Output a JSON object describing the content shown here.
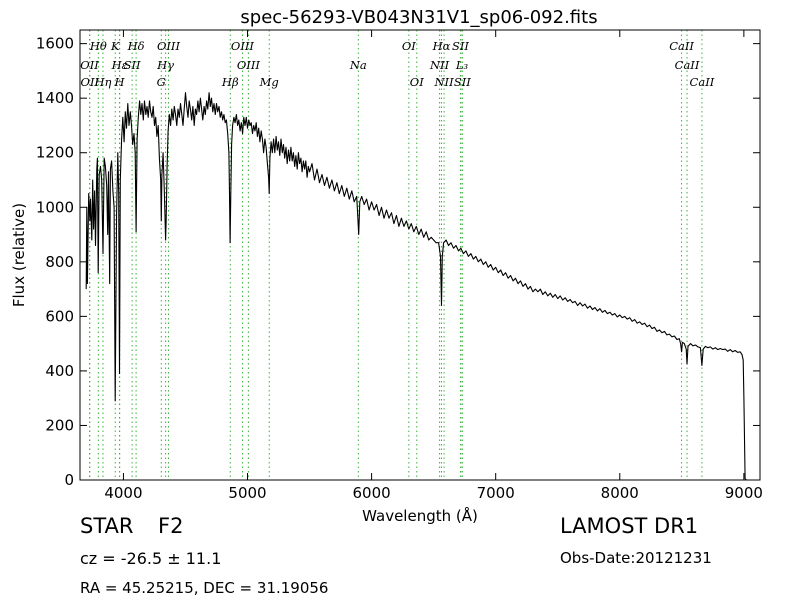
{
  "chart_data": {
    "type": "line",
    "title": "spec-56293-VB043N31V1_sp06-092.fits",
    "xlabel": "Wavelength (Å)",
    "ylabel": "Flux (relative)",
    "xlim": [
      3650,
      9130
    ],
    "ylim": [
      0,
      1650
    ],
    "xticks": [
      4000,
      5000,
      6000,
      7000,
      8000,
      9000
    ],
    "yticks": [
      0,
      200,
      400,
      600,
      800,
      1000,
      1200,
      1400,
      1600
    ],
    "grid": false,
    "line_color": "#000000",
    "marker_color": "#3cb33c",
    "spectrum": [
      [
        3700,
        700
      ],
      [
        3705,
        1000
      ],
      [
        3710,
        720
      ],
      [
        3720,
        1050
      ],
      [
        3730,
        950
      ],
      [
        3735,
        1030
      ],
      [
        3745,
        880
      ],
      [
        3752,
        1100
      ],
      [
        3760,
        920
      ],
      [
        3768,
        1060
      ],
      [
        3775,
        860
      ],
      [
        3785,
        1140
      ],
      [
        3790,
        1180
      ],
      [
        3797,
        760
      ],
      [
        3805,
        1120
      ],
      [
        3815,
        1150
      ],
      [
        3825,
        1100
      ],
      [
        3835,
        830
      ],
      [
        3845,
        1180
      ],
      [
        3855,
        1150
      ],
      [
        3865,
        1080
      ],
      [
        3873,
        900
      ],
      [
        3880,
        1130
      ],
      [
        3889,
        720
      ],
      [
        3895,
        1140
      ],
      [
        3905,
        1170
      ],
      [
        3915,
        1060
      ],
      [
        3925,
        1000
      ],
      [
        3934,
        290
      ],
      [
        3945,
        980
      ],
      [
        3955,
        1200
      ],
      [
        3962,
        1050
      ],
      [
        3968,
        390
      ],
      [
        3975,
        1100
      ],
      [
        3985,
        1250
      ],
      [
        3995,
        1330
      ],
      [
        4005,
        1240
      ],
      [
        4015,
        1350
      ],
      [
        4025,
        1290
      ],
      [
        4035,
        1380
      ],
      [
        4045,
        1300
      ],
      [
        4055,
        1350
      ],
      [
        4065,
        1300
      ],
      [
        4075,
        1230
      ],
      [
        4085,
        1270
      ],
      [
        4095,
        1200
      ],
      [
        4102,
        910
      ],
      [
        4110,
        1250
      ],
      [
        4120,
        1330
      ],
      [
        4130,
        1390
      ],
      [
        4140,
        1340
      ],
      [
        4150,
        1380
      ],
      [
        4160,
        1320
      ],
      [
        4170,
        1390
      ],
      [
        4180,
        1340
      ],
      [
        4190,
        1370
      ],
      [
        4200,
        1330
      ],
      [
        4210,
        1390
      ],
      [
        4220,
        1350
      ],
      [
        4230,
        1330
      ],
      [
        4240,
        1370
      ],
      [
        4250,
        1300
      ],
      [
        4260,
        1330
      ],
      [
        4270,
        1260
      ],
      [
        4280,
        1300
      ],
      [
        4290,
        1180
      ],
      [
        4300,
        1100
      ],
      [
        4305,
        950
      ],
      [
        4310,
        1120
      ],
      [
        4320,
        1200
      ],
      [
        4330,
        1050
      ],
      [
        4340,
        880
      ],
      [
        4345,
        960
      ],
      [
        4352,
        1150
      ],
      [
        4360,
        1280
      ],
      [
        4370,
        1340
      ],
      [
        4380,
        1300
      ],
      [
        4390,
        1360
      ],
      [
        4400,
        1320
      ],
      [
        4410,
        1370
      ],
      [
        4420,
        1340
      ],
      [
        4430,
        1300
      ],
      [
        4440,
        1360
      ],
      [
        4450,
        1330
      ],
      [
        4460,
        1380
      ],
      [
        4470,
        1340
      ],
      [
        4480,
        1300
      ],
      [
        4490,
        1360
      ],
      [
        4500,
        1420
      ],
      [
        4510,
        1370
      ],
      [
        4520,
        1330
      ],
      [
        4530,
        1390
      ],
      [
        4540,
        1360
      ],
      [
        4550,
        1320
      ],
      [
        4560,
        1370
      ],
      [
        4570,
        1300
      ],
      [
        4580,
        1360
      ],
      [
        4590,
        1340
      ],
      [
        4600,
        1390
      ],
      [
        4610,
        1350
      ],
      [
        4620,
        1400
      ],
      [
        4630,
        1360
      ],
      [
        4640,
        1320
      ],
      [
        4650,
        1370
      ],
      [
        4660,
        1340
      ],
      [
        4670,
        1390
      ],
      [
        4680,
        1360
      ],
      [
        4690,
        1420
      ],
      [
        4700,
        1370
      ],
      [
        4710,
        1400
      ],
      [
        4720,
        1350
      ],
      [
        4730,
        1380
      ],
      [
        4740,
        1340
      ],
      [
        4750,
        1380
      ],
      [
        4760,
        1350
      ],
      [
        4770,
        1370
      ],
      [
        4780,
        1330
      ],
      [
        4790,
        1350
      ],
      [
        4800,
        1320
      ],
      [
        4810,
        1340
      ],
      [
        4820,
        1310
      ],
      [
        4830,
        1320
      ],
      [
        4840,
        1270
      ],
      [
        4850,
        1200
      ],
      [
        4855,
        1050
      ],
      [
        4860,
        870
      ],
      [
        4865,
        1050
      ],
      [
        4872,
        1230
      ],
      [
        4880,
        1300
      ],
      [
        4890,
        1330
      ],
      [
        4900,
        1310
      ],
      [
        4910,
        1340
      ],
      [
        4920,
        1300
      ],
      [
        4930,
        1320
      ],
      [
        4940,
        1280
      ],
      [
        4950,
        1310
      ],
      [
        4960,
        1270
      ],
      [
        4970,
        1330
      ],
      [
        4980,
        1300
      ],
      [
        4990,
        1330
      ],
      [
        5000,
        1290
      ],
      [
        5010,
        1320
      ],
      [
        5020,
        1300
      ],
      [
        5030,
        1310
      ],
      [
        5040,
        1270
      ],
      [
        5050,
        1300
      ],
      [
        5060,
        1280
      ],
      [
        5070,
        1310
      ],
      [
        5080,
        1260
      ],
      [
        5090,
        1290
      ],
      [
        5100,
        1240
      ],
      [
        5110,
        1280
      ],
      [
        5120,
        1250
      ],
      [
        5130,
        1200
      ],
      [
        5140,
        1250
      ],
      [
        5150,
        1220
      ],
      [
        5160,
        1160
      ],
      [
        5170,
        1110
      ],
      [
        5175,
        1050
      ],
      [
        5180,
        1180
      ],
      [
        5190,
        1240
      ],
      [
        5200,
        1200
      ],
      [
        5210,
        1250
      ],
      [
        5220,
        1200
      ],
      [
        5230,
        1260
      ],
      [
        5240,
        1210
      ],
      [
        5250,
        1240
      ],
      [
        5260,
        1190
      ],
      [
        5270,
        1250
      ],
      [
        5280,
        1200
      ],
      [
        5290,
        1230
      ],
      [
        5300,
        1180
      ],
      [
        5310,
        1220
      ],
      [
        5320,
        1160
      ],
      [
        5330,
        1210
      ],
      [
        5340,
        1170
      ],
      [
        5350,
        1220
      ],
      [
        5360,
        1170
      ],
      [
        5370,
        1200
      ],
      [
        5380,
        1150
      ],
      [
        5390,
        1190
      ],
      [
        5400,
        1140
      ],
      [
        5410,
        1200
      ],
      [
        5420,
        1160
      ],
      [
        5430,
        1180
      ],
      [
        5440,
        1130
      ],
      [
        5450,
        1170
      ],
      [
        5460,
        1140
      ],
      [
        5470,
        1170
      ],
      [
        5480,
        1110
      ],
      [
        5490,
        1150
      ],
      [
        5500,
        1130
      ],
      [
        5520,
        1160
      ],
      [
        5540,
        1100
      ],
      [
        5560,
        1140
      ],
      [
        5580,
        1090
      ],
      [
        5600,
        1120
      ],
      [
        5620,
        1080
      ],
      [
        5640,
        1110
      ],
      [
        5660,
        1070
      ],
      [
        5680,
        1100
      ],
      [
        5700,
        1060
      ],
      [
        5720,
        1090
      ],
      [
        5740,
        1050
      ],
      [
        5760,
        1080
      ],
      [
        5780,
        1040
      ],
      [
        5800,
        1070
      ],
      [
        5820,
        1030
      ],
      [
        5840,
        1060
      ],
      [
        5860,
        1020
      ],
      [
        5880,
        1040
      ],
      [
        5890,
        950
      ],
      [
        5896,
        900
      ],
      [
        5905,
        1020
      ],
      [
        5920,
        1040
      ],
      [
        5940,
        1010
      ],
      [
        5960,
        1030
      ],
      [
        5980,
        990
      ],
      [
        6000,
        1020
      ],
      [
        6020,
        990
      ],
      [
        6040,
        1010
      ],
      [
        6060,
        970
      ],
      [
        6080,
        1000
      ],
      [
        6100,
        960
      ],
      [
        6120,
        990
      ],
      [
        6140,
        960
      ],
      [
        6160,
        980
      ],
      [
        6180,
        940
      ],
      [
        6200,
        970
      ],
      [
        6220,
        930
      ],
      [
        6240,
        960
      ],
      [
        6260,
        930
      ],
      [
        6280,
        950
      ],
      [
        6300,
        920
      ],
      [
        6320,
        940
      ],
      [
        6340,
        910
      ],
      [
        6360,
        930
      ],
      [
        6380,
        900
      ],
      [
        6400,
        920
      ],
      [
        6420,
        890
      ],
      [
        6440,
        910
      ],
      [
        6460,
        880
      ],
      [
        6480,
        890
      ],
      [
        6500,
        880
      ],
      [
        6520,
        870
      ],
      [
        6540,
        870
      ],
      [
        6555,
        820
      ],
      [
        6563,
        640
      ],
      [
        6570,
        820
      ],
      [
        6580,
        870
      ],
      [
        6600,
        880
      ],
      [
        6620,
        860
      ],
      [
        6640,
        870
      ],
      [
        6660,
        850
      ],
      [
        6680,
        860
      ],
      [
        6700,
        840
      ],
      [
        6720,
        850
      ],
      [
        6740,
        830
      ],
      [
        6760,
        840
      ],
      [
        6780,
        820
      ],
      [
        6800,
        830
      ],
      [
        6820,
        810
      ],
      [
        6840,
        820
      ],
      [
        6860,
        800
      ],
      [
        6880,
        810
      ],
      [
        6900,
        790
      ],
      [
        6920,
        800
      ],
      [
        6940,
        780
      ],
      [
        6960,
        790
      ],
      [
        6980,
        770
      ],
      [
        7000,
        780
      ],
      [
        7020,
        760
      ],
      [
        7040,
        770
      ],
      [
        7060,
        750
      ],
      [
        7080,
        760
      ],
      [
        7100,
        740
      ],
      [
        7120,
        750
      ],
      [
        7140,
        730
      ],
      [
        7160,
        740
      ],
      [
        7180,
        720
      ],
      [
        7200,
        730
      ],
      [
        7220,
        710
      ],
      [
        7240,
        720
      ],
      [
        7260,
        700
      ],
      [
        7280,
        710
      ],
      [
        7300,
        690
      ],
      [
        7320,
        700
      ],
      [
        7340,
        690
      ],
      [
        7360,
        700
      ],
      [
        7380,
        680
      ],
      [
        7400,
        690
      ],
      [
        7420,
        675
      ],
      [
        7440,
        685
      ],
      [
        7460,
        670
      ],
      [
        7480,
        680
      ],
      [
        7500,
        665
      ],
      [
        7520,
        675
      ],
      [
        7540,
        660
      ],
      [
        7560,
        668
      ],
      [
        7580,
        655
      ],
      [
        7600,
        662
      ],
      [
        7620,
        650
      ],
      [
        7640,
        655
      ],
      [
        7660,
        640
      ],
      [
        7680,
        650
      ],
      [
        7700,
        638
      ],
      [
        7720,
        645
      ],
      [
        7740,
        630
      ],
      [
        7760,
        638
      ],
      [
        7780,
        625
      ],
      [
        7800,
        632
      ],
      [
        7820,
        620
      ],
      [
        7840,
        628
      ],
      [
        7860,
        615
      ],
      [
        7880,
        622
      ],
      [
        7900,
        610
      ],
      [
        7920,
        615
      ],
      [
        7940,
        605
      ],
      [
        7960,
        610
      ],
      [
        7980,
        598
      ],
      [
        8000,
        605
      ],
      [
        8020,
        595
      ],
      [
        8040,
        600
      ],
      [
        8060,
        590
      ],
      [
        8080,
        595
      ],
      [
        8100,
        582
      ],
      [
        8120,
        588
      ],
      [
        8140,
        575
      ],
      [
        8160,
        580
      ],
      [
        8180,
        570
      ],
      [
        8200,
        575
      ],
      [
        8220,
        562
      ],
      [
        8240,
        568
      ],
      [
        8260,
        555
      ],
      [
        8280,
        560
      ],
      [
        8300,
        545
      ],
      [
        8320,
        550
      ],
      [
        8340,
        540
      ],
      [
        8360,
        545
      ],
      [
        8380,
        532
      ],
      [
        8400,
        535
      ],
      [
        8420,
        525
      ],
      [
        8440,
        528
      ],
      [
        8460,
        515
      ],
      [
        8480,
        518
      ],
      [
        8490,
        500
      ],
      [
        8498,
        470
      ],
      [
        8505,
        505
      ],
      [
        8520,
        500
      ],
      [
        8535,
        480
      ],
      [
        8542,
        425
      ],
      [
        8550,
        490
      ],
      [
        8570,
        500
      ],
      [
        8590,
        492
      ],
      [
        8610,
        495
      ],
      [
        8630,
        488
      ],
      [
        8650,
        485
      ],
      [
        8662,
        420
      ],
      [
        8672,
        480
      ],
      [
        8690,
        490
      ],
      [
        8710,
        485
      ],
      [
        8730,
        488
      ],
      [
        8750,
        480
      ],
      [
        8770,
        485
      ],
      [
        8790,
        478
      ],
      [
        8810,
        482
      ],
      [
        8830,
        478
      ],
      [
        8850,
        480
      ],
      [
        8870,
        472
      ],
      [
        8890,
        478
      ],
      [
        8910,
        470
      ],
      [
        8930,
        475
      ],
      [
        8950,
        468
      ],
      [
        8970,
        470
      ],
      [
        8985,
        460
      ],
      [
        8995,
        440
      ],
      [
        9000,
        300
      ],
      [
        9010,
        5
      ],
      [
        9020,
        0
      ]
    ],
    "lines": [
      {
        "name": "Hθ",
        "wave": 3798,
        "row": 0
      },
      {
        "name": "K",
        "wave": 3934,
        "row": 0
      },
      {
        "name": "Hδ",
        "wave": 4102,
        "row": 0
      },
      {
        "name": "OIII",
        "wave": 4363,
        "row": 0
      },
      {
        "name": "OIII",
        "wave": 4959,
        "row": 0
      },
      {
        "name": "OI",
        "wave": 6300,
        "row": 0
      },
      {
        "name": "Hα",
        "wave": 6563,
        "row": 0
      },
      {
        "name": "SII",
        "wave": 6716,
        "row": 0
      },
      {
        "name": "CaII",
        "wave": 8498,
        "row": 0
      },
      {
        "name": "OII",
        "wave": 3727,
        "row": 1
      },
      {
        "name": "Hε",
        "wave": 3970,
        "row": 1
      },
      {
        "name": "SII",
        "wave": 4070,
        "row": 1
      },
      {
        "name": "Hγ",
        "wave": 4340,
        "row": 1
      },
      {
        "name": "OIII",
        "wave": 5007,
        "row": 1
      },
      {
        "name": "Na",
        "wave": 5893,
        "row": 1
      },
      {
        "name": "NII",
        "wave": 6548,
        "row": 1
      },
      {
        "name": "L₃",
        "wave": 6728,
        "row": 1
      },
      {
        "name": "CaII",
        "wave": 8542,
        "row": 1
      },
      {
        "name": "OII",
        "wave": 3729,
        "row": 2
      },
      {
        "name": "Hη",
        "wave": 3835,
        "row": 2
      },
      {
        "name": "H",
        "wave": 3968,
        "row": 2
      },
      {
        "name": "G",
        "wave": 4305,
        "row": 2
      },
      {
        "name": "Hβ",
        "wave": 4861,
        "row": 2
      },
      {
        "name": "Mg",
        "wave": 5175,
        "row": 2
      },
      {
        "name": "OI",
        "wave": 6364,
        "row": 2
      },
      {
        "name": "NII",
        "wave": 6584,
        "row": 2
      },
      {
        "name": "SII",
        "wave": 6731,
        "row": 2
      },
      {
        "name": "CaII",
        "wave": 8662,
        "row": 2
      }
    ]
  },
  "info": {
    "object_class": "STAR",
    "subclass": "F2",
    "redshift": "cz = -26.5 ± 11.1",
    "coordinates": "RA = 45.25215, DEC = 31.19056",
    "survey": "LAMOST DR1",
    "obs_date": "Obs-Date:20121231"
  }
}
